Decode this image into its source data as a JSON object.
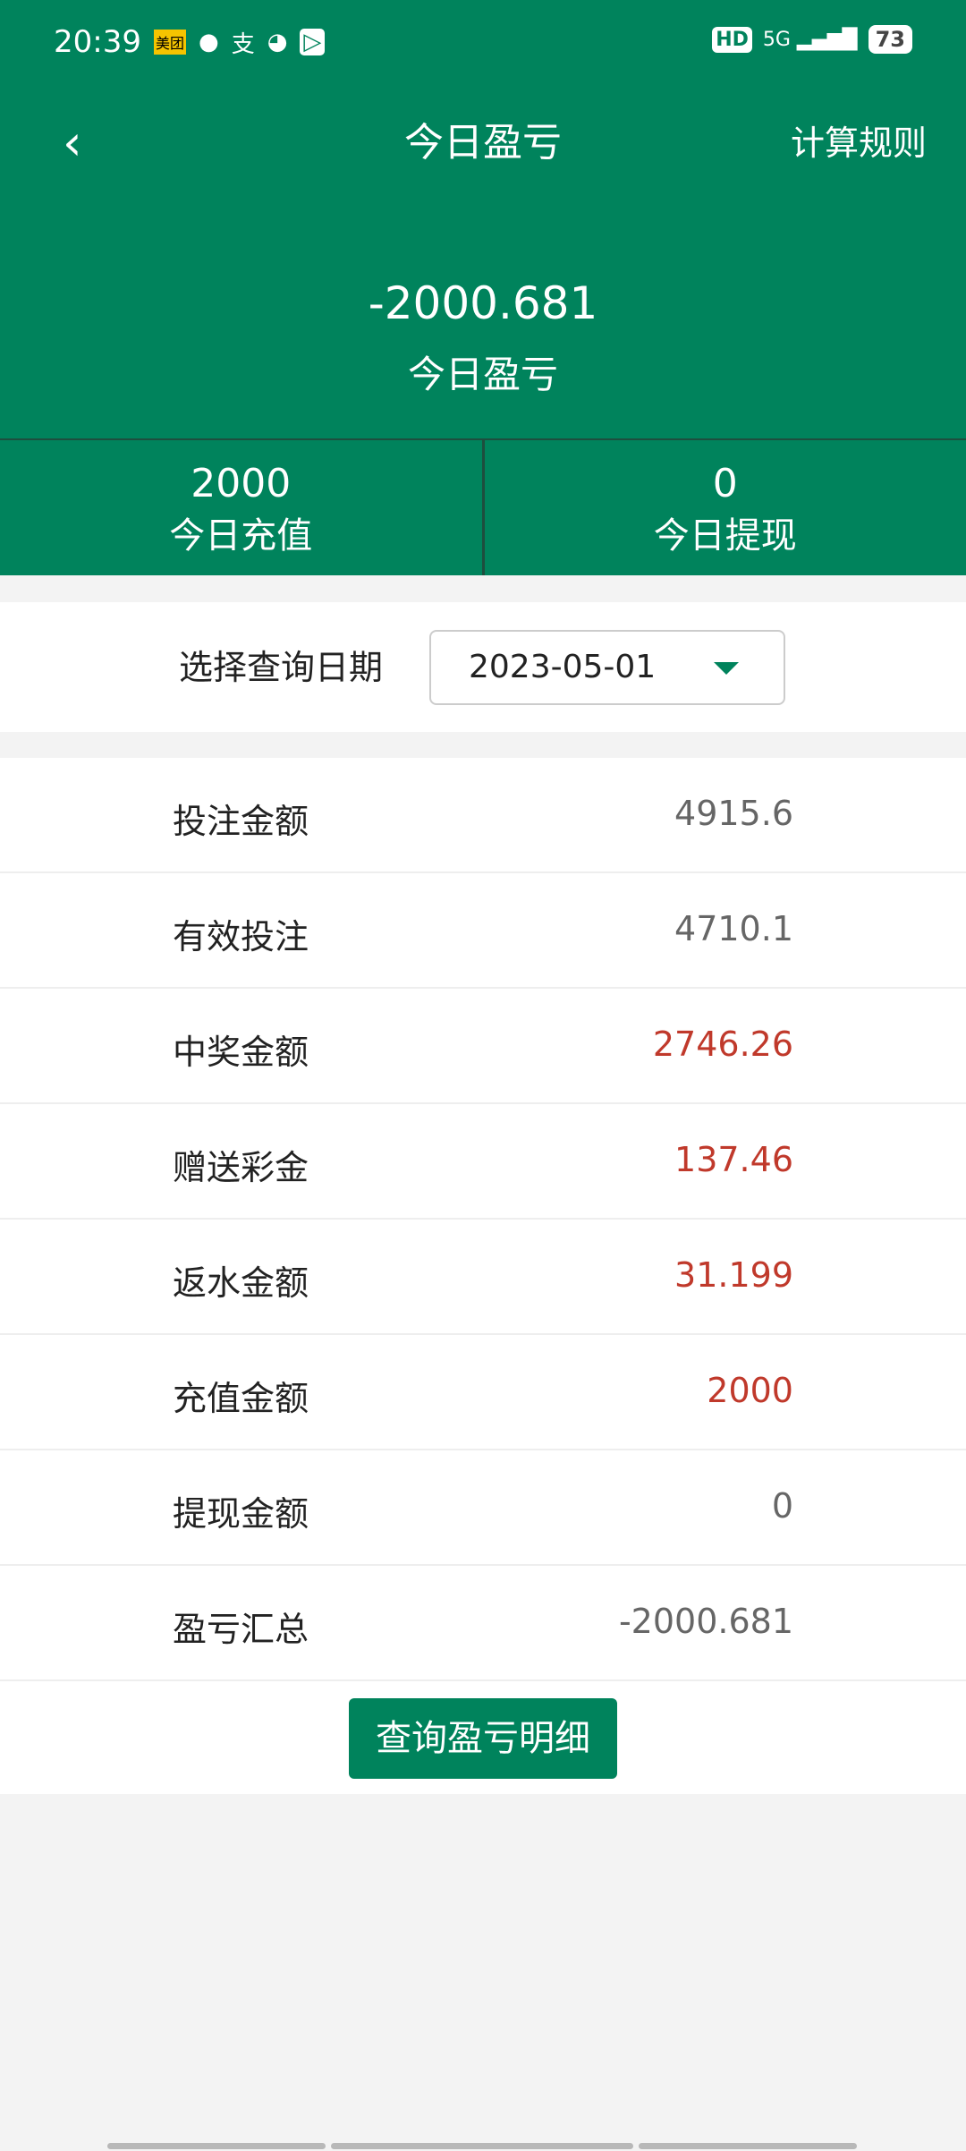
{
  "status_bar": {
    "time": "20:39",
    "battery": "73",
    "network": "5G",
    "hd": "HD"
  },
  "header": {
    "title": "今日盈亏",
    "rule_link": "计算规则",
    "amount": "-2000.681",
    "amount_label": "今日盈亏"
  },
  "stats": [
    {
      "value": "2000",
      "label": "今日充值"
    },
    {
      "value": "0",
      "label": "今日提现"
    }
  ],
  "date_filter": {
    "label": "选择查询日期",
    "value": "2023-05-01"
  },
  "rows": [
    {
      "label": "投注金额",
      "value": "4915.6",
      "highlight": false
    },
    {
      "label": "有效投注",
      "value": "4710.1",
      "highlight": false
    },
    {
      "label": "中奖金额",
      "value": "2746.26",
      "highlight": true
    },
    {
      "label": "赠送彩金",
      "value": "137.46",
      "highlight": true
    },
    {
      "label": "返水金额",
      "value": "31.199",
      "highlight": true
    },
    {
      "label": "充值金额",
      "value": "2000",
      "highlight": true
    },
    {
      "label": "提现金额",
      "value": "0",
      "highlight": false
    },
    {
      "label": "盈亏汇总",
      "value": "-2000.681",
      "highlight": false
    }
  ],
  "detail_button": "查询盈亏明细",
  "colors": {
    "primary": "#00835c",
    "highlight": "#c0392b"
  }
}
